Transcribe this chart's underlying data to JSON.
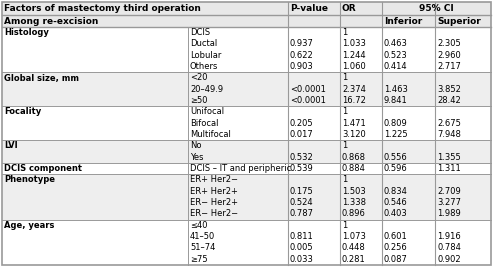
{
  "title_line1": "Factors of mastectomy third operation",
  "title_line2": "Among re-excision",
  "rows": [
    {
      "group": "Histology",
      "subgroup": "DCIS",
      "pvalue": "",
      "or": "1",
      "inferior": "",
      "superior": ""
    },
    {
      "group": "",
      "subgroup": "Ductal",
      "pvalue": "0.937",
      "or": "1.033",
      "inferior": "0.463",
      "superior": "2.305"
    },
    {
      "group": "",
      "subgroup": "Lobular",
      "pvalue": "0.622",
      "or": "1.244",
      "inferior": "0.523",
      "superior": "2.960"
    },
    {
      "group": "",
      "subgroup": "Others",
      "pvalue": "0.903",
      "or": "1.060",
      "inferior": "0.414",
      "superior": "2.717"
    },
    {
      "group": "Global size, mm",
      "subgroup": "<20",
      "pvalue": "",
      "or": "1",
      "inferior": "",
      "superior": ""
    },
    {
      "group": "",
      "subgroup": "20–49.9",
      "pvalue": "<0.0001",
      "or": "2.374",
      "inferior": "1.463",
      "superior": "3.852"
    },
    {
      "group": "",
      "subgroup": "≥50",
      "pvalue": "<0.0001",
      "or": "16.72",
      "inferior": "9.841",
      "superior": "28.42"
    },
    {
      "group": "Focality",
      "subgroup": "Unifocal",
      "pvalue": "",
      "or": "1",
      "inferior": "",
      "superior": ""
    },
    {
      "group": "",
      "subgroup": "Bifocal",
      "pvalue": "0.205",
      "or": "1.471",
      "inferior": "0.809",
      "superior": "2.675"
    },
    {
      "group": "",
      "subgroup": "Multifocal",
      "pvalue": "0.017",
      "or": "3.120",
      "inferior": "1.225",
      "superior": "7.948"
    },
    {
      "group": "LVI",
      "subgroup": "No",
      "pvalue": "",
      "or": "1",
      "inferior": "",
      "superior": ""
    },
    {
      "group": "",
      "subgroup": "Yes",
      "pvalue": "0.532",
      "or": "0.868",
      "inferior": "0.556",
      "superior": "1.355"
    },
    {
      "group": "DCIS component",
      "subgroup": "DCIS – IT and peripheric",
      "pvalue": "0.539",
      "or": "0.884",
      "inferior": "0.596",
      "superior": "1.311"
    },
    {
      "group": "Phenotype",
      "subgroup": "ER+ Her2−",
      "pvalue": "",
      "or": "1",
      "inferior": "",
      "superior": ""
    },
    {
      "group": "",
      "subgroup": "ER+ Her2+",
      "pvalue": "0.175",
      "or": "1.503",
      "inferior": "0.834",
      "superior": "2.709"
    },
    {
      "group": "",
      "subgroup": "ER− Her2+",
      "pvalue": "0.524",
      "or": "1.338",
      "inferior": "0.546",
      "superior": "3.277"
    },
    {
      "group": "",
      "subgroup": "ER− Her2−",
      "pvalue": "0.787",
      "or": "0.896",
      "inferior": "0.403",
      "superior": "1.989"
    },
    {
      "group": "Age, years",
      "subgroup": "≤40",
      "pvalue": "",
      "or": "1",
      "inferior": "",
      "superior": ""
    },
    {
      "group": "",
      "subgroup": "41–50",
      "pvalue": "0.811",
      "or": "1.073",
      "inferior": "0.601",
      "superior": "1.916"
    },
    {
      "group": "",
      "subgroup": "51–74",
      "pvalue": "0.005",
      "or": "0.448",
      "inferior": "0.256",
      "superior": "0.784"
    },
    {
      "group": "",
      "subgroup": "≥75",
      "pvalue": "0.033",
      "or": "0.281",
      "inferior": "0.087",
      "superior": "0.902"
    }
  ],
  "border_color": "#999999",
  "header_bg": "#e8e8e8",
  "group_bg_even": "#ffffff",
  "group_bg_odd": "#eeeeee",
  "font_size": 6.0,
  "header_font_size": 6.5
}
